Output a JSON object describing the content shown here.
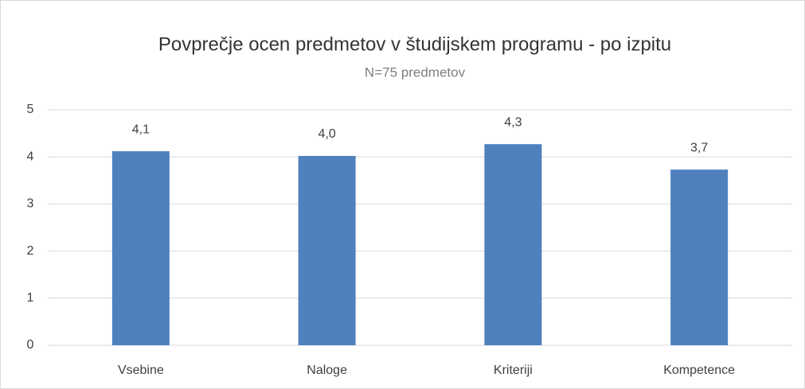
{
  "chart_data": {
    "type": "bar",
    "title": "Povprečje ocen predmetov v študijskem programu  - po izpitu",
    "subtitle": "N=75 predmetov",
    "categories": [
      "Vsebine",
      "Naloge",
      "Kriteriji",
      "Kompetence"
    ],
    "values": [
      4.12,
      4.02,
      4.27,
      3.73
    ],
    "value_labels": [
      "4,1",
      "4,0",
      "4,3",
      "3,7"
    ],
    "color": "#4f81bd",
    "ylim": [
      0,
      5
    ],
    "yticks": [
      0,
      1,
      2,
      3,
      4,
      5
    ],
    "grid": true
  }
}
